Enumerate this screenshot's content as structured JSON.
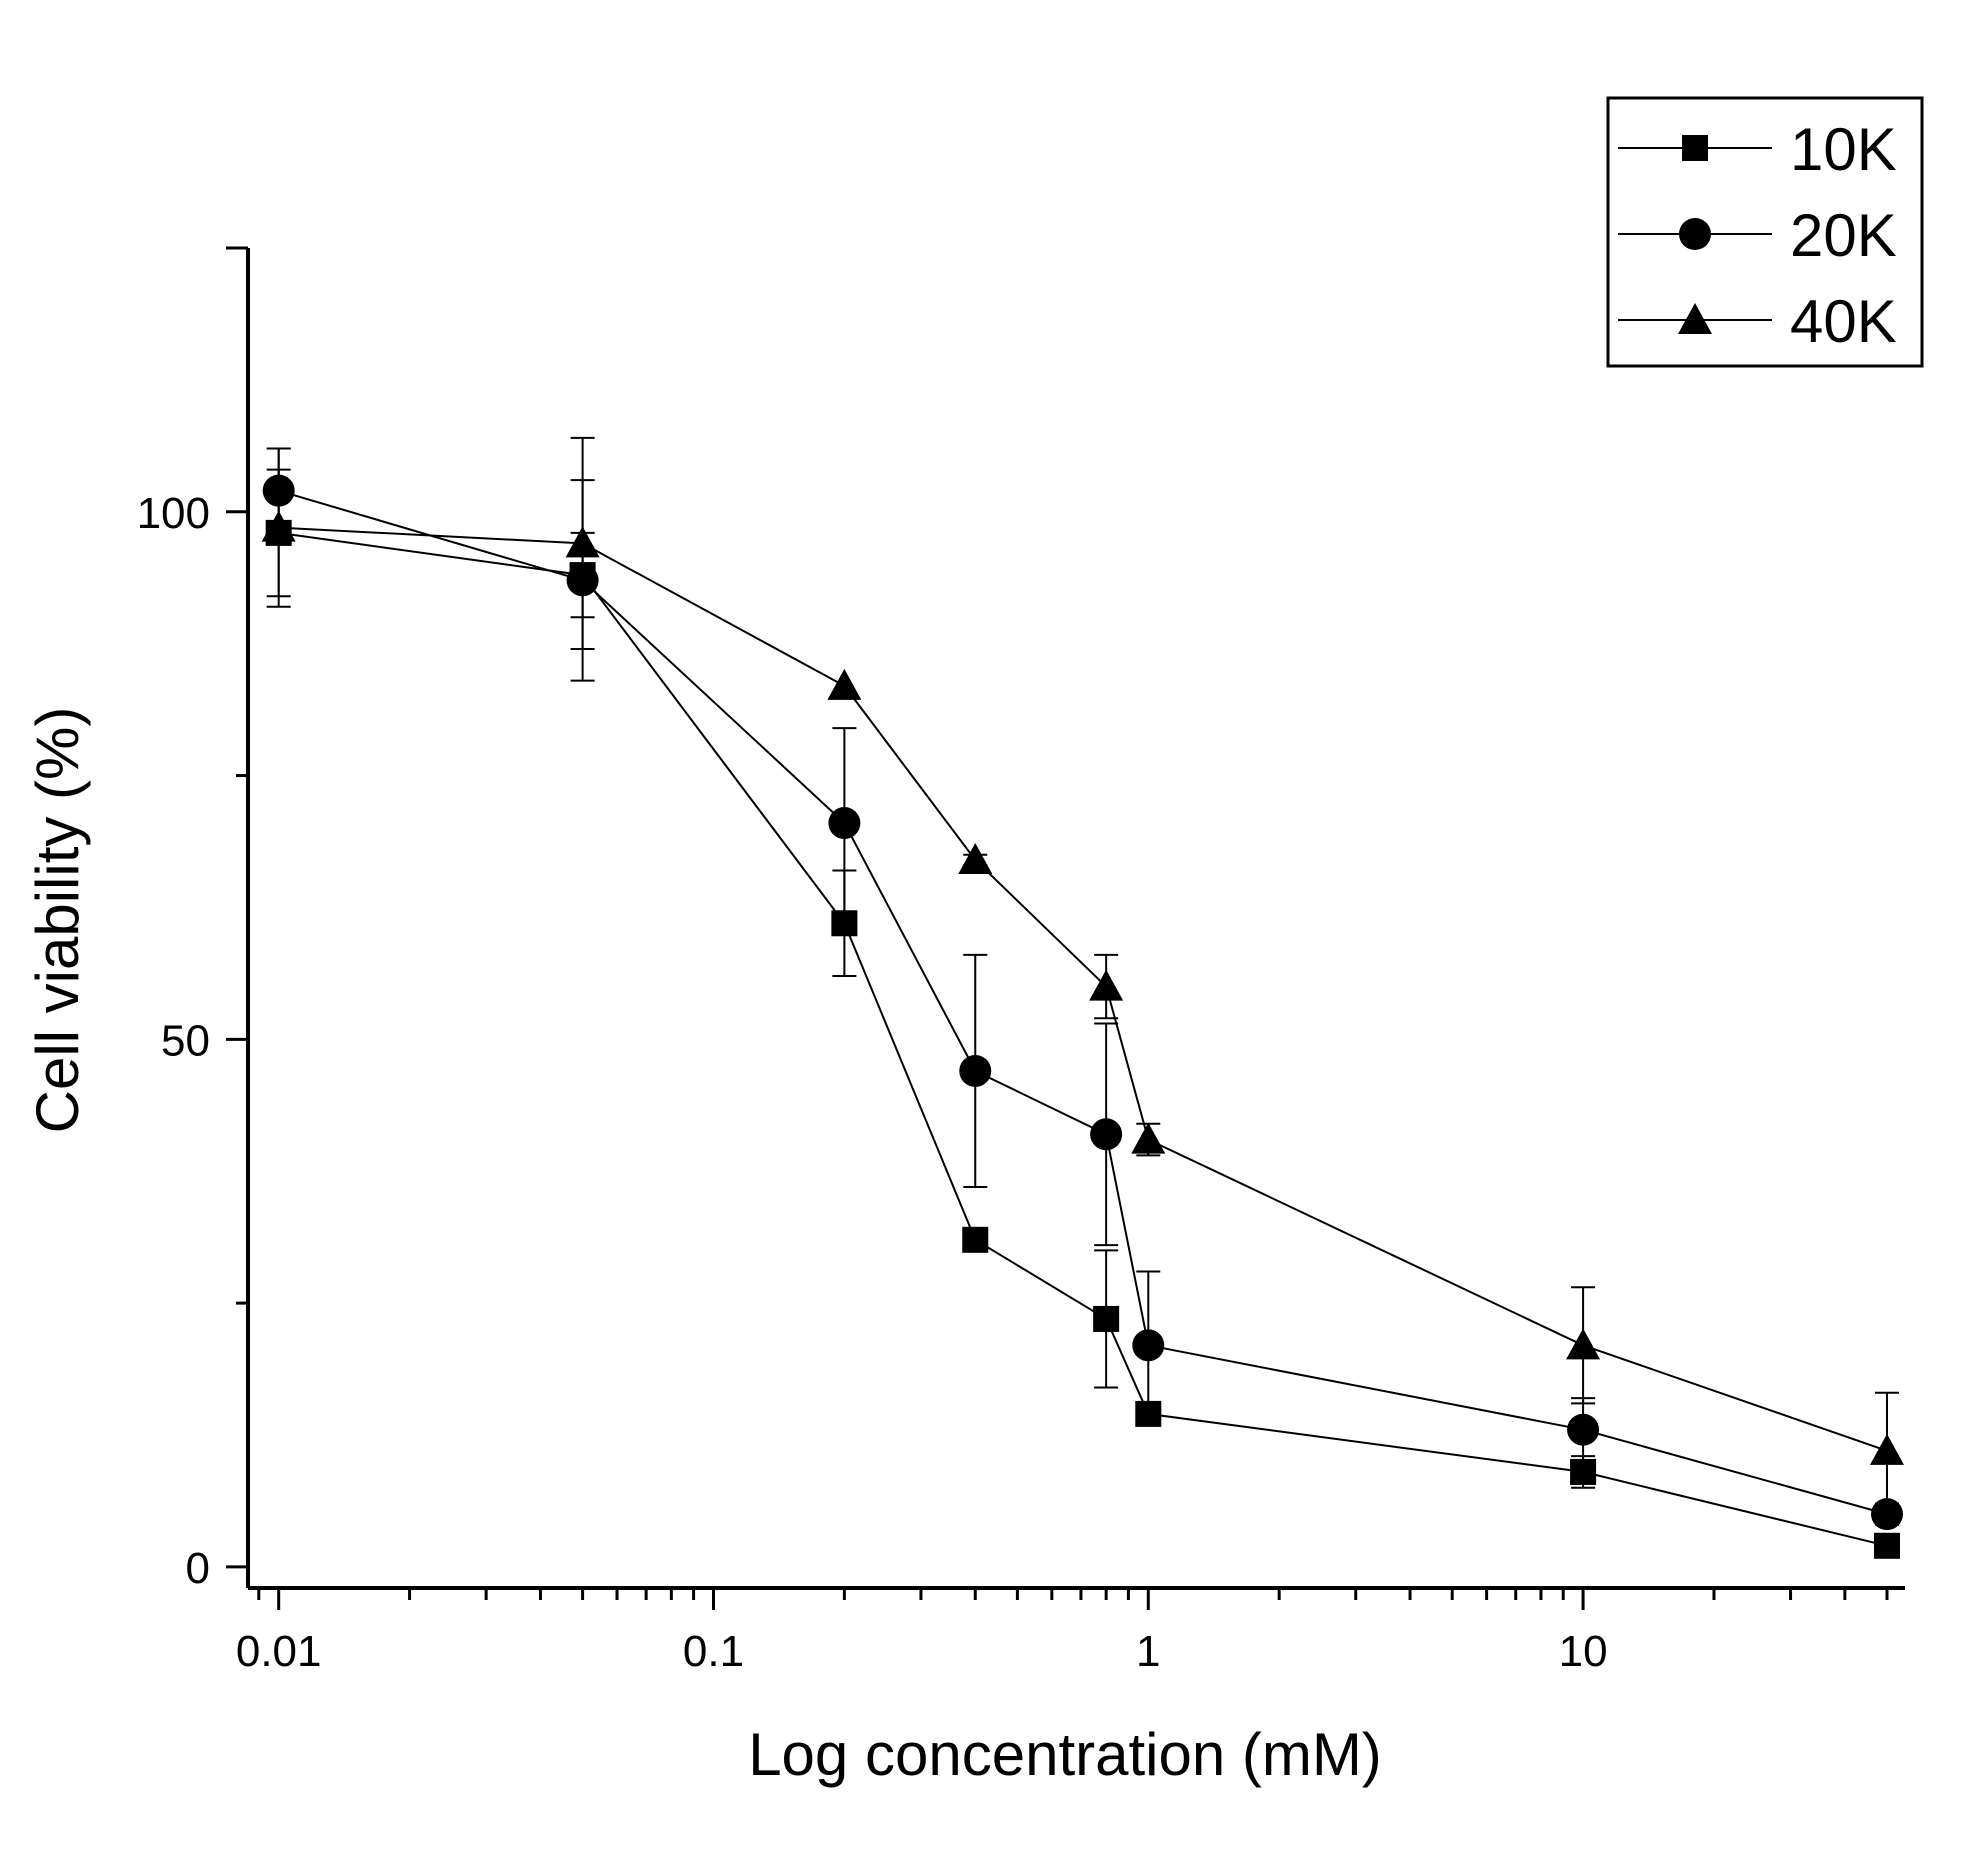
{
  "chart_data": {
    "type": "line",
    "title": "",
    "xlabel": "Log concentration (mM)",
    "ylabel": "Cell viability (%)",
    "xscale": "log",
    "xlim": [
      0.0085,
      55
    ],
    "ylim": [
      -2,
      125
    ],
    "xticks": [
      0.01,
      0.1,
      1,
      10
    ],
    "xtick_labels": [
      "0.01",
      "0.1",
      "1",
      "10"
    ],
    "yticks": [
      0,
      50,
      100
    ],
    "ytick_labels": [
      "0",
      "50",
      "100"
    ],
    "legend_position": "top-right",
    "x": [
      0.01,
      0.05,
      0.2,
      0.4,
      0.8,
      1,
      10,
      50
    ],
    "series": [
      {
        "name": "10K",
        "marker": "square",
        "values": [
          98,
          94,
          61,
          31,
          23.5,
          14.5,
          9,
          2
        ],
        "errors": [
          6,
          4,
          5,
          1,
          6.5,
          0,
          1.5,
          0
        ]
      },
      {
        "name": "20K",
        "marker": "circle",
        "values": [
          102,
          93.5,
          70.5,
          47,
          41,
          21,
          13,
          5
        ],
        "errors": [
          4,
          9.5,
          9,
          11,
          10.5,
          7,
          3,
          1
        ]
      },
      {
        "name": "40K",
        "marker": "triangle",
        "values": [
          98.5,
          97,
          83.5,
          67,
          55,
          40.5,
          21,
          11
        ],
        "errors": [
          7.5,
          10,
          0,
          0.5,
          3,
          1.5,
          5.5,
          5.5
        ]
      }
    ]
  }
}
